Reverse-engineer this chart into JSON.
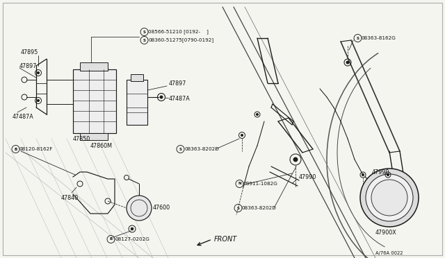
{
  "bg_color": "#f5f5f0",
  "line_color": "#1a1a1a",
  "text_color": "#111111",
  "watermark": "A/76A 0022",
  "border_color": "#999999",
  "label_fs": 5.8,
  "small_fs": 5.2,
  "components": {
    "47895": "47895",
    "47897_left": "47897",
    "47487A_left": "47487A",
    "47850": "47850",
    "47860M": "47860M",
    "47897_right": "47897",
    "47487A_right": "47487A",
    "S08566": "08566-51210 [0192-    ]",
    "S08360": "08360-51275[0790-0192]",
    "B08120": "08120-8162F",
    "47840": "47840",
    "47600": "47600",
    "B08127": "08127-0202G",
    "S08363_mid": "08363-8202D",
    "N08911": "08911-1082G",
    "S08363_bot": "08363-8202D",
    "47990": "47990",
    "47900X": "47900X",
    "S08363_top": "08363-8162G",
    "FRONT": "FRONT"
  }
}
